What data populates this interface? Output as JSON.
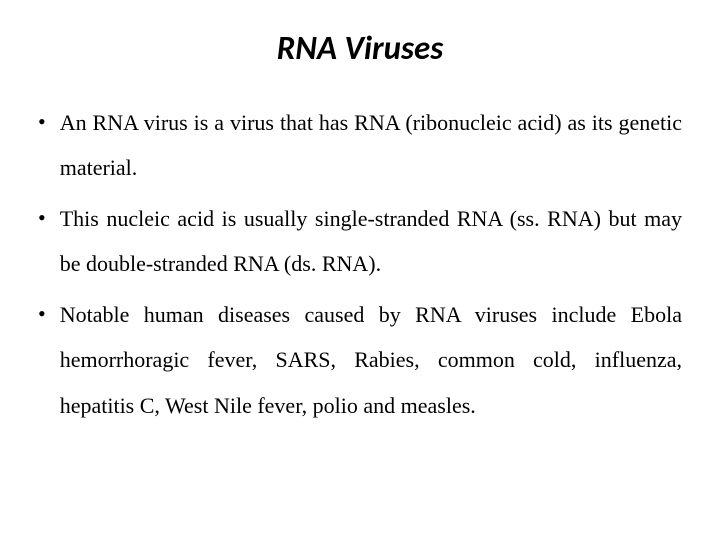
{
  "title": "RNA Viruses",
  "title_fontsize": 33,
  "title_fontweight": "bold",
  "title_fontstyle": "italic",
  "title_color": "#000000",
  "body_fontsize": 22,
  "body_color": "#000000",
  "background_color": "#ffffff",
  "bullets": [
    "An RNA virus is a virus that has RNA (ribonucleic acid) as its genetic material.",
    "This nucleic acid is usually single-stranded RNA (ss. RNA) but may be double-stranded RNA (ds. RNA).",
    "Notable human diseases caused by RNA viruses include Ebola hemorrhoragic fever, SARS, Rabies, common cold, influenza, hepatitis C, West Nile fever, polio and measles."
  ]
}
